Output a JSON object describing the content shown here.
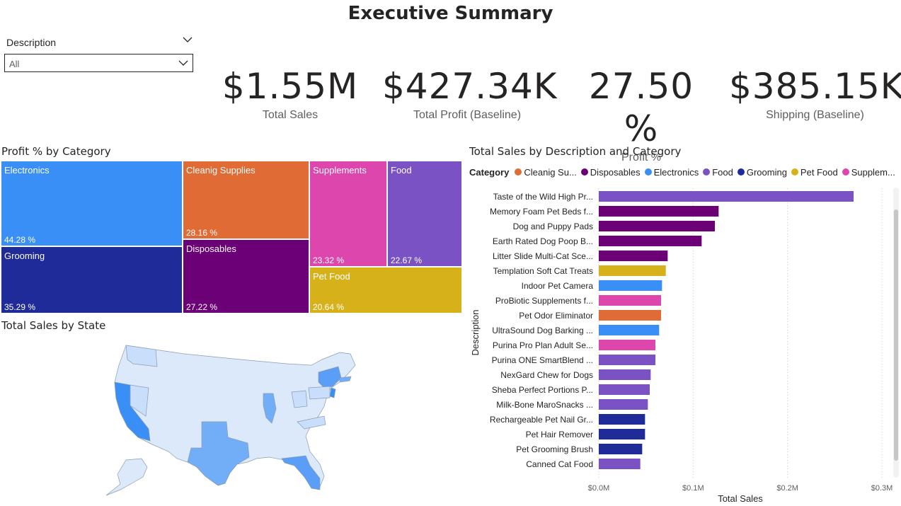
{
  "page": {
    "title": "Executive Summary"
  },
  "slicer": {
    "header": "Description",
    "value": "All"
  },
  "kpis": {
    "total_sales": {
      "value": "$1.55M",
      "label": "Total Sales"
    },
    "total_profit": {
      "value": "$427.34K",
      "label": "Total Profit (Baseline)"
    },
    "profit_pct": {
      "value": "27.50 %",
      "label": "Profit %"
    },
    "shipping": {
      "value": "$385.15K",
      "label": "Shipping (Baseline)"
    }
  },
  "treemap": {
    "title": "Profit % by Category",
    "tiles": [
      {
        "name": "Electronics",
        "value": "44.28 %",
        "color": "#3a8ff6"
      },
      {
        "name": "Grooming",
        "value": "35.29 %",
        "color": "#1f2b99"
      },
      {
        "name": "Cleanig Supplies",
        "value": "28.16 %",
        "color": "#e06b35"
      },
      {
        "name": "Disposables",
        "value": "27.22 %",
        "color": "#6b0077"
      },
      {
        "name": "Supplements",
        "value": "23.32 %",
        "color": "#dd47ad"
      },
      {
        "name": "Food",
        "value": "22.67 %",
        "color": "#7a52c4"
      },
      {
        "name": "Pet Food",
        "value": "20.64 %",
        "color": "#d6b11a"
      }
    ]
  },
  "map": {
    "title": "Total Sales by State"
  },
  "bar_chart": {
    "title": "Total Sales by Description and Category",
    "legend_title": "Category",
    "legend": [
      {
        "name": "Cleanig Su...",
        "color": "#e06b35"
      },
      {
        "name": "Disposables",
        "color": "#6b0077"
      },
      {
        "name": "Electronics",
        "color": "#3a8ff6"
      },
      {
        "name": "Food",
        "color": "#7a52c4"
      },
      {
        "name": "Grooming",
        "color": "#1f2b99"
      },
      {
        "name": "Pet Food",
        "color": "#d6b11a"
      },
      {
        "name": "Supplem...",
        "color": "#dd47ad"
      }
    ],
    "xlabel": "Total Sales",
    "ylabel": "Description"
  },
  "chart_data": {
    "type": "bar",
    "orientation": "horizontal",
    "title": "Total Sales by Description and Category",
    "xlabel": "Total Sales",
    "ylabel": "Description",
    "xlim": [
      0,
      0.3
    ],
    "x_ticks": [
      "$0.0M",
      "$0.1M",
      "$0.2M",
      "$0.3M"
    ],
    "grid": true,
    "legend_placement": "top",
    "categories": [
      "Taste of the Wild High Pr...",
      "Memory Foam Pet Beds f...",
      "Dog and Puppy Pads",
      "Earth Rated Dog Poop B...",
      "Litter Slide Multi-Cat Sce...",
      "Templation Soft Cat Treats",
      "Indoor Pet Camera",
      "ProBiotic Supplements f...",
      "Pet Odor Eliminator",
      "UltraSound Dog Barking ...",
      "Purina Pro Plan Adult Se...",
      "Purina ONE SmartBlend ...",
      "NexGard Chew for Dogs",
      "Sheba Perfect Portions P...",
      "Milk-Bone MaroSnacks ...",
      "Rechargeable Pet Nail Gr...",
      "Pet Hair Remover",
      "Pet Grooming Brush",
      "Canned Cat Food"
    ],
    "values": [
      0.27,
      0.127,
      0.123,
      0.109,
      0.073,
      0.071,
      0.067,
      0.066,
      0.066,
      0.064,
      0.06,
      0.06,
      0.055,
      0.054,
      0.052,
      0.049,
      0.049,
      0.046,
      0.044
    ],
    "category_of_bar": [
      "Food",
      "Disposables",
      "Disposables",
      "Disposables",
      "Disposables",
      "Pet Food",
      "Electronics",
      "Supplements",
      "Cleanig Supplies",
      "Electronics",
      "Supplements",
      "Food",
      "Food",
      "Food",
      "Food",
      "Grooming",
      "Grooming",
      "Grooming",
      "Food"
    ],
    "bar_colors": [
      "#7a52c4",
      "#6b0077",
      "#6b0077",
      "#6b0077",
      "#6b0077",
      "#d6b11a",
      "#3a8ff6",
      "#dd47ad",
      "#e06b35",
      "#3a8ff6",
      "#dd47ad",
      "#7a52c4",
      "#7a52c4",
      "#7a52c4",
      "#7a52c4",
      "#1f2b99",
      "#1f2b99",
      "#1f2b99",
      "#7a52c4"
    ]
  }
}
